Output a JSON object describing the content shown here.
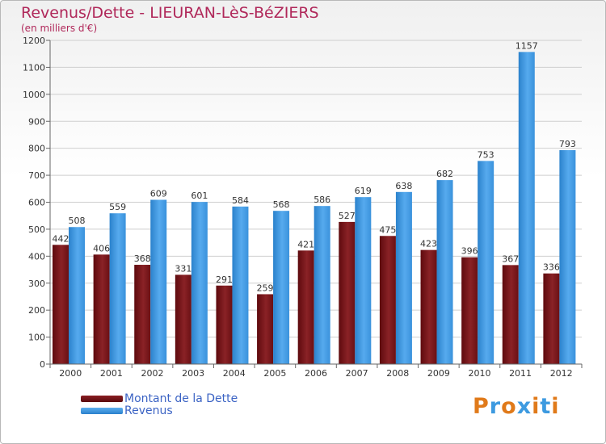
{
  "chart_data": {
    "type": "bar",
    "title": "Revenus/Dette - LIEURAN-LèS-BéZIERS",
    "subtitle": "(en milliers d'€)",
    "xlabel": "",
    "ylabel": "",
    "ylim": [
      0,
      1200
    ],
    "yticks": [
      0,
      100,
      200,
      300,
      400,
      500,
      600,
      700,
      800,
      900,
      1000,
      1100,
      1200
    ],
    "categories": [
      "2000",
      "2001",
      "2002",
      "2003",
      "2004",
      "2005",
      "2006",
      "2007",
      "2008",
      "2009",
      "2010",
      "2011",
      "2012"
    ],
    "series": [
      {
        "name": "Montant de la Dette",
        "color": "#7a1418",
        "values": [
          442,
          406,
          368,
          331,
          291,
          259,
          421,
          527,
          475,
          423,
          396,
          367,
          336
        ]
      },
      {
        "name": "Revenus",
        "color": "#3d9ae0",
        "values": [
          508,
          559,
          609,
          601,
          584,
          568,
          586,
          619,
          638,
          682,
          753,
          1157,
          793
        ]
      }
    ],
    "grid": true,
    "legend_position": "bottom-left"
  },
  "logo": {
    "text": "Proxiti",
    "colors": [
      "#e07a1a",
      "#3d9ae0",
      "#e07a1a",
      "#3d9ae0",
      "#e07a1a",
      "#3d9ae0",
      "#e07a1a"
    ]
  }
}
